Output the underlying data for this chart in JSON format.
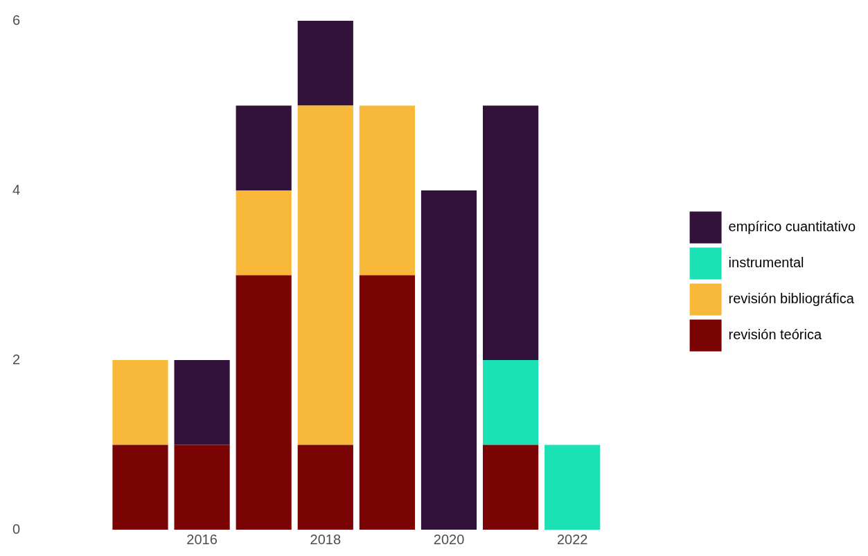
{
  "chart_data": {
    "type": "bar",
    "stacked": true,
    "x": [
      2015,
      2016,
      2017,
      2018,
      2019,
      2020,
      2021,
      2022
    ],
    "xlim": [
      2014.5,
      2022.5
    ],
    "xticks": [
      2016,
      2018,
      2020,
      2022
    ],
    "ylim": [
      0,
      6
    ],
    "yticks": [
      0,
      2,
      4,
      6
    ],
    "grid": false,
    "legend": "right",
    "series": [
      {
        "name": "revisión teórica",
        "color": "#7a0403",
        "values": [
          1,
          1,
          3,
          1,
          3,
          null,
          1,
          null
        ]
      },
      {
        "name": "revisión bibliográfica",
        "color": "#f8b93a",
        "values": [
          1,
          null,
          1,
          4,
          2,
          null,
          null,
          null
        ]
      },
      {
        "name": "instrumental",
        "color": "#1be2b5",
        "values": [
          null,
          null,
          null,
          null,
          null,
          null,
          1,
          1
        ]
      },
      {
        "name": "empírico cuantitativo",
        "color": "#32123a",
        "values": [
          null,
          1,
          1,
          1,
          null,
          4,
          3,
          null
        ]
      }
    ]
  }
}
